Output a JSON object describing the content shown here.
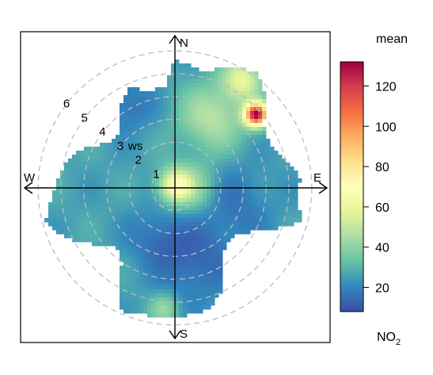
{
  "chart_data": {
    "type": "heatmap",
    "subtype": "polar-plot",
    "title": "",
    "directions": [
      "N",
      "E",
      "S",
      "W"
    ],
    "radial_axis": {
      "label": "ws",
      "ticks": [
        1,
        2,
        3,
        4,
        5,
        6
      ],
      "range": [
        0,
        6.3
      ],
      "grid": "dashed circles"
    },
    "colorbar": {
      "title": "mean",
      "pollutant": "NO",
      "pollutant_subscript": "2",
      "range": [
        8,
        132
      ],
      "ticks": [
        20,
        40,
        60,
        80,
        100,
        120
      ],
      "palette": [
        "#3B4DA8",
        "#3288BD",
        "#66C2A5",
        "#ABDDA4",
        "#E6F598",
        "#FFFFBF",
        "#FEE08B",
        "#FDAE61",
        "#F46D43",
        "#D53E4F",
        "#9E0142"
      ]
    },
    "extent_ws_by_direction": [
      {
        "dir_deg": 0,
        "ws": 5.6
      },
      {
        "dir_deg": 15,
        "ws": 5.2
      },
      {
        "dir_deg": 25,
        "ws": 5.9
      },
      {
        "dir_deg": 35,
        "ws": 6.2
      },
      {
        "dir_deg": 45,
        "ws": 5.6
      },
      {
        "dir_deg": 55,
        "ws": 4.7
      },
      {
        "dir_deg": 65,
        "ws": 4.6
      },
      {
        "dir_deg": 75,
        "ws": 4.9
      },
      {
        "dir_deg": 85,
        "ws": 5.5
      },
      {
        "dir_deg": 95,
        "ws": 5.4
      },
      {
        "dir_deg": 105,
        "ws": 5.7
      },
      {
        "dir_deg": 115,
        "ws": 4.3
      },
      {
        "dir_deg": 125,
        "ws": 3.4
      },
      {
        "dir_deg": 135,
        "ws": 3.3
      },
      {
        "dir_deg": 145,
        "ws": 3.6
      },
      {
        "dir_deg": 155,
        "ws": 4.9
      },
      {
        "dir_deg": 165,
        "ws": 5.5
      },
      {
        "dir_deg": 175,
        "ws": 5.6
      },
      {
        "dir_deg": 185,
        "ws": 5.7
      },
      {
        "dir_deg": 195,
        "ws": 5.7
      },
      {
        "dir_deg": 205,
        "ws": 5.9
      },
      {
        "dir_deg": 215,
        "ws": 4.0
      },
      {
        "dir_deg": 225,
        "ws": 3.6
      },
      {
        "dir_deg": 235,
        "ws": 4.3
      },
      {
        "dir_deg": 245,
        "ws": 5.2
      },
      {
        "dir_deg": 255,
        "ws": 5.9
      },
      {
        "dir_deg": 265,
        "ws": 5.4
      },
      {
        "dir_deg": 275,
        "ws": 5.1
      },
      {
        "dir_deg": 285,
        "ws": 4.9
      },
      {
        "dir_deg": 295,
        "ws": 4.2
      },
      {
        "dir_deg": 305,
        "ws": 3.4
      },
      {
        "dir_deg": 315,
        "ws": 3.4
      },
      {
        "dir_deg": 325,
        "ws": 4.2
      },
      {
        "dir_deg": 335,
        "ws": 4.8
      },
      {
        "dir_deg": 345,
        "ws": 4.4
      },
      {
        "dir_deg": 355,
        "ws": 4.4
      }
    ],
    "field": {
      "background_mean": 26,
      "features": [
        {
          "dir_deg": 0,
          "ws": 0.1,
          "mean": 62,
          "spread_ws": 0.5
        },
        {
          "dir_deg": 28,
          "ws": 3.5,
          "mean": 48,
          "spread_ws": 1.0
        },
        {
          "dir_deg": 32,
          "ws": 5.6,
          "mean": 58,
          "spread_ws": 0.6
        },
        {
          "dir_deg": 48,
          "ws": 4.8,
          "mean": 128,
          "spread_ws": 0.35
        },
        {
          "dir_deg": 105,
          "ws": 2.5,
          "mean": 16,
          "spread_ws": 1.3
        },
        {
          "dir_deg": 165,
          "ws": 3.5,
          "mean": 14,
          "spread_ws": 1.2
        },
        {
          "dir_deg": 185,
          "ws": 5.3,
          "mean": 42,
          "spread_ws": 0.45
        },
        {
          "dir_deg": 200,
          "ws": 2.3,
          "mean": 16,
          "spread_ws": 0.9
        },
        {
          "dir_deg": 330,
          "ws": 4.2,
          "mean": 15,
          "spread_ws": 0.8
        },
        {
          "dir_deg": 90,
          "ws": 0.8,
          "mean": 44,
          "spread_ws": 0.8
        }
      ]
    }
  }
}
